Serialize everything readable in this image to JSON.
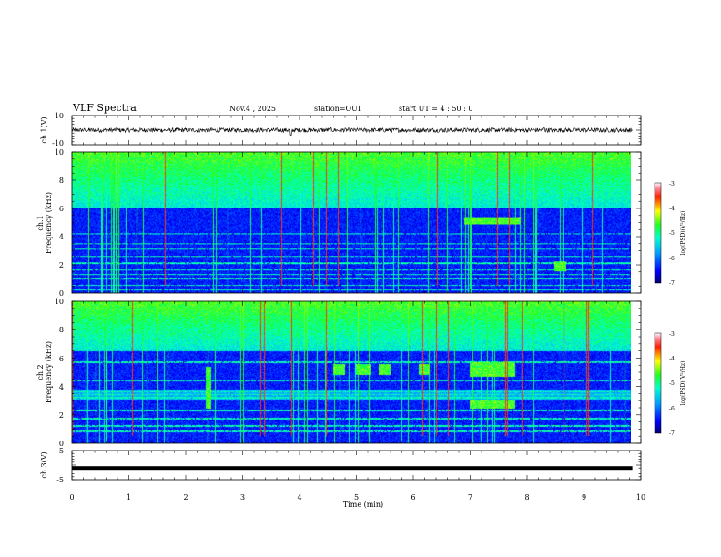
{
  "header": {
    "title": "VLF Spectra",
    "date": "Nov.4 , 2025",
    "station": "station=OUI",
    "start": "start UT = 4 : 50 : 0"
  },
  "chart_data": [
    {
      "type": "line",
      "name": "ch1-waveform",
      "ylabel": "ch.1(V)",
      "ylim": [
        -10,
        10
      ],
      "ytick_labels": [
        "10",
        "-10"
      ],
      "baseline": 0,
      "noise_amplitude": 1.5,
      "spikes": [
        {
          "t": 3.85,
          "v": -3.5
        },
        {
          "t": 4.55,
          "v": 2.0
        },
        {
          "t": 8.3,
          "v": 1.5
        }
      ]
    },
    {
      "type": "heatmap",
      "name": "ch1-spectrogram",
      "ylabel_top": "ch.1",
      "ylabel": "Frequency (kHz)",
      "ylim": [
        0,
        10
      ],
      "ytick_labels": [
        "0",
        "2",
        "4",
        "6",
        "8",
        "10"
      ],
      "colorbar": {
        "label": "log(PSD)(V²/Hz)",
        "range": [
          -7,
          -3
        ],
        "tick_labels": [
          "-3",
          "-4",
          "-5",
          "-6",
          "-7"
        ]
      },
      "noise_band_top_khz": 6.0,
      "horizontal_lines_khz": [
        0.2,
        0.5,
        1.0,
        1.3,
        1.6,
        2.1,
        2.6,
        3.1,
        3.5,
        4.2
      ],
      "emission_bursts": [
        {
          "t0": 6.9,
          "t1": 7.9,
          "f0": 4.9,
          "f1": 5.4
        },
        {
          "t0": 8.5,
          "t1": 8.7,
          "f0": 1.5,
          "f1": 2.2
        }
      ]
    },
    {
      "type": "heatmap",
      "name": "ch2-spectrogram",
      "ylabel_top": "ch.2",
      "ylabel": "Frequency (kHz)",
      "ylim": [
        0,
        10
      ],
      "ytick_labels": [
        "0",
        "2",
        "4",
        "6",
        "8",
        "10"
      ],
      "colorbar": {
        "label": "log(PSD)(V²/Hz)",
        "range": [
          -7,
          -3
        ],
        "tick_labels": [
          "-3",
          "-4",
          "-5",
          "-6",
          "-7"
        ]
      },
      "noise_band_top_khz": 6.5,
      "horizontal_lines_khz": [
        0.8,
        1.2,
        1.7,
        2.3,
        3.2,
        3.4,
        3.6,
        4.4,
        5.7
      ],
      "emission_bursts": [
        {
          "t0": 4.6,
          "t1": 4.8,
          "f0": 4.8,
          "f1": 5.6
        },
        {
          "t0": 5.0,
          "t1": 5.25,
          "f0": 4.8,
          "f1": 5.6
        },
        {
          "t0": 5.4,
          "t1": 5.6,
          "f0": 4.8,
          "f1": 5.6
        },
        {
          "t0": 6.1,
          "t1": 6.3,
          "f0": 4.8,
          "f1": 5.6
        },
        {
          "t0": 7.0,
          "t1": 7.8,
          "f0": 4.7,
          "f1": 5.7
        },
        {
          "t0": 2.35,
          "t1": 2.45,
          "f0": 2.4,
          "f1": 5.4
        },
        {
          "t0": 7.0,
          "t1": 7.8,
          "f0": 2.4,
          "f1": 3.0
        }
      ]
    },
    {
      "type": "line",
      "name": "ch3-waveform",
      "ylabel": "ch.3(V)",
      "ylim": [
        -5,
        5
      ],
      "ytick_labels": [
        "5",
        "-5"
      ],
      "constant_value": -1.0,
      "xlabel": "Time (min)",
      "xlim": [
        0,
        10
      ],
      "xtick_labels": [
        "0",
        "1",
        "2",
        "3",
        "4",
        "5",
        "6",
        "7",
        "8",
        "9",
        "10"
      ],
      "data_end_min": 9.85
    }
  ]
}
